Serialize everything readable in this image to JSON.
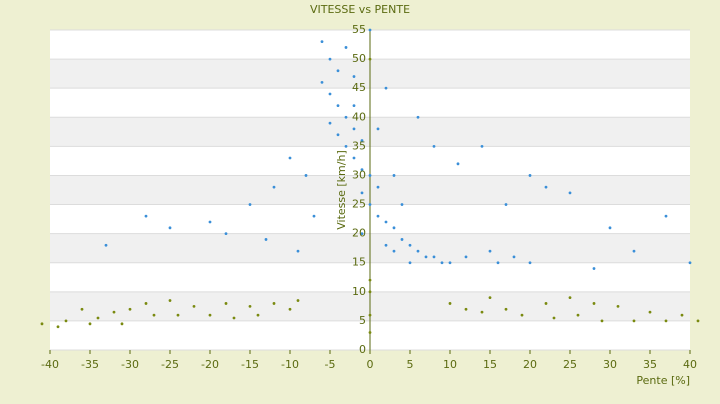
{
  "chart_data": {
    "type": "scatter",
    "title": "VITESSE vs PENTE",
    "x_label": "Pente [%]",
    "y_label": "Vitesse [km/h]",
    "xlim": [
      -40,
      40
    ],
    "xticks": [
      -40,
      -35,
      -30,
      -25,
      -20,
      -15,
      -10,
      -5,
      0,
      5,
      10,
      15,
      20,
      25,
      30,
      35,
      40
    ],
    "ylim": [
      0,
      55
    ],
    "yticks": [
      0,
      5,
      10,
      15,
      20,
      25,
      30,
      35,
      40,
      45,
      50,
      55
    ],
    "grid": true,
    "series": [
      {
        "color": "#3a8fd8",
        "x": [
          -6,
          -5,
          -4,
          -3,
          -2,
          -6,
          -5,
          -4,
          -3,
          -2,
          -1,
          -5,
          -4,
          -3,
          -2,
          -1,
          0,
          1,
          -1,
          0,
          1,
          2,
          3,
          4,
          5,
          6,
          7,
          8,
          9,
          10,
          3,
          5,
          12,
          15,
          18,
          20,
          -8,
          -10,
          -12,
          -15,
          -20,
          -25,
          -28,
          -33,
          -18,
          -13,
          -9,
          -7,
          11,
          14,
          20,
          22,
          25,
          30,
          37,
          40,
          33,
          17,
          8,
          6,
          2,
          0,
          1,
          -2,
          3,
          -1,
          2,
          4,
          16,
          28
        ],
        "values": [
          53,
          50,
          48,
          52,
          47,
          46,
          44,
          42,
          40,
          38,
          36,
          39,
          37,
          35,
          33,
          31,
          30,
          28,
          27,
          25,
          23,
          22,
          21,
          19,
          18,
          17,
          16,
          16,
          15,
          15,
          17,
          15,
          16,
          17,
          16,
          15,
          30,
          33,
          28,
          25,
          22,
          21,
          23,
          18,
          20,
          19,
          17,
          23,
          32,
          35,
          30,
          28,
          27,
          21,
          23,
          15,
          17,
          25,
          35,
          40,
          45,
          55,
          38,
          42,
          30,
          20,
          18,
          25,
          15,
          14
        ]
      },
      {
        "color": "#7a8a10",
        "x": [
          -38,
          -36,
          -34,
          -32,
          -30,
          -28,
          -27,
          -25,
          -24,
          -22,
          -20,
          -18,
          -17,
          -15,
          -14,
          -12,
          -10,
          -9,
          -39,
          -35,
          -31,
          10,
          12,
          14,
          15,
          17,
          19,
          22,
          23,
          25,
          26,
          28,
          29,
          31,
          33,
          35,
          37,
          39,
          41,
          -41,
          0,
          0,
          0,
          0,
          0
        ],
        "values": [
          5,
          7,
          5.5,
          6.5,
          7,
          8,
          6,
          8.5,
          6,
          7.5,
          6,
          8,
          5.5,
          7.5,
          6,
          8,
          7,
          8.5,
          4,
          4.5,
          4.5,
          8,
          7,
          6.5,
          9,
          7,
          6,
          8,
          5.5,
          9,
          6,
          8,
          5,
          7.5,
          5,
          6.5,
          5,
          6,
          5,
          4.5,
          3,
          6,
          10,
          12,
          50
        ]
      }
    ]
  }
}
